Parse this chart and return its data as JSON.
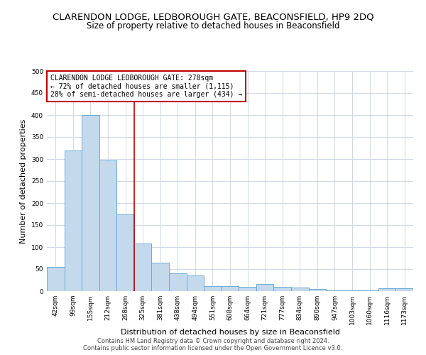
{
  "title": "CLARENDON LODGE, LEDBOROUGH GATE, BEACONSFIELD, HP9 2DQ",
  "subtitle": "Size of property relative to detached houses in Beaconsfield",
  "xlabel": "Distribution of detached houses by size in Beaconsfield",
  "ylabel": "Number of detached properties",
  "categories": [
    "42sqm",
    "99sqm",
    "155sqm",
    "212sqm",
    "268sqm",
    "325sqm",
    "381sqm",
    "438sqm",
    "494sqm",
    "551sqm",
    "608sqm",
    "664sqm",
    "721sqm",
    "777sqm",
    "834sqm",
    "890sqm",
    "947sqm",
    "1003sqm",
    "1060sqm",
    "1116sqm",
    "1173sqm"
  ],
  "values": [
    55,
    320,
    400,
    297,
    175,
    108,
    65,
    40,
    36,
    12,
    11,
    10,
    16,
    10,
    8,
    5,
    2,
    1,
    1,
    6,
    6
  ],
  "bar_color": "#c5d9ed",
  "bar_edge_color": "#6aaad4",
  "vline_x": 4.5,
  "vline_color": "#c00000",
  "annotation_text": "CLARENDON LODGE LEDBOROUGH GATE: 278sqm\n← 72% of detached houses are smaller (1,115)\n28% of semi-detached houses are larger (434) →",
  "annotation_box_color": "#ffffff",
  "annotation_box_edge": "#c00000",
  "ylim": [
    0,
    500
  ],
  "yticks": [
    0,
    50,
    100,
    150,
    200,
    250,
    300,
    350,
    400,
    450,
    500
  ],
  "footer_line1": "Contains HM Land Registry data © Crown copyright and database right 2024.",
  "footer_line2": "Contains public sector information licensed under the Open Government Licence v3.0.",
  "bg_color": "#ffffff",
  "grid_color": "#d0d8e8",
  "title_fontsize": 9.5,
  "subtitle_fontsize": 8.5,
  "xlabel_fontsize": 8,
  "ylabel_fontsize": 8,
  "tick_fontsize": 6.5,
  "annotation_fontsize": 7,
  "footer_fontsize": 6
}
